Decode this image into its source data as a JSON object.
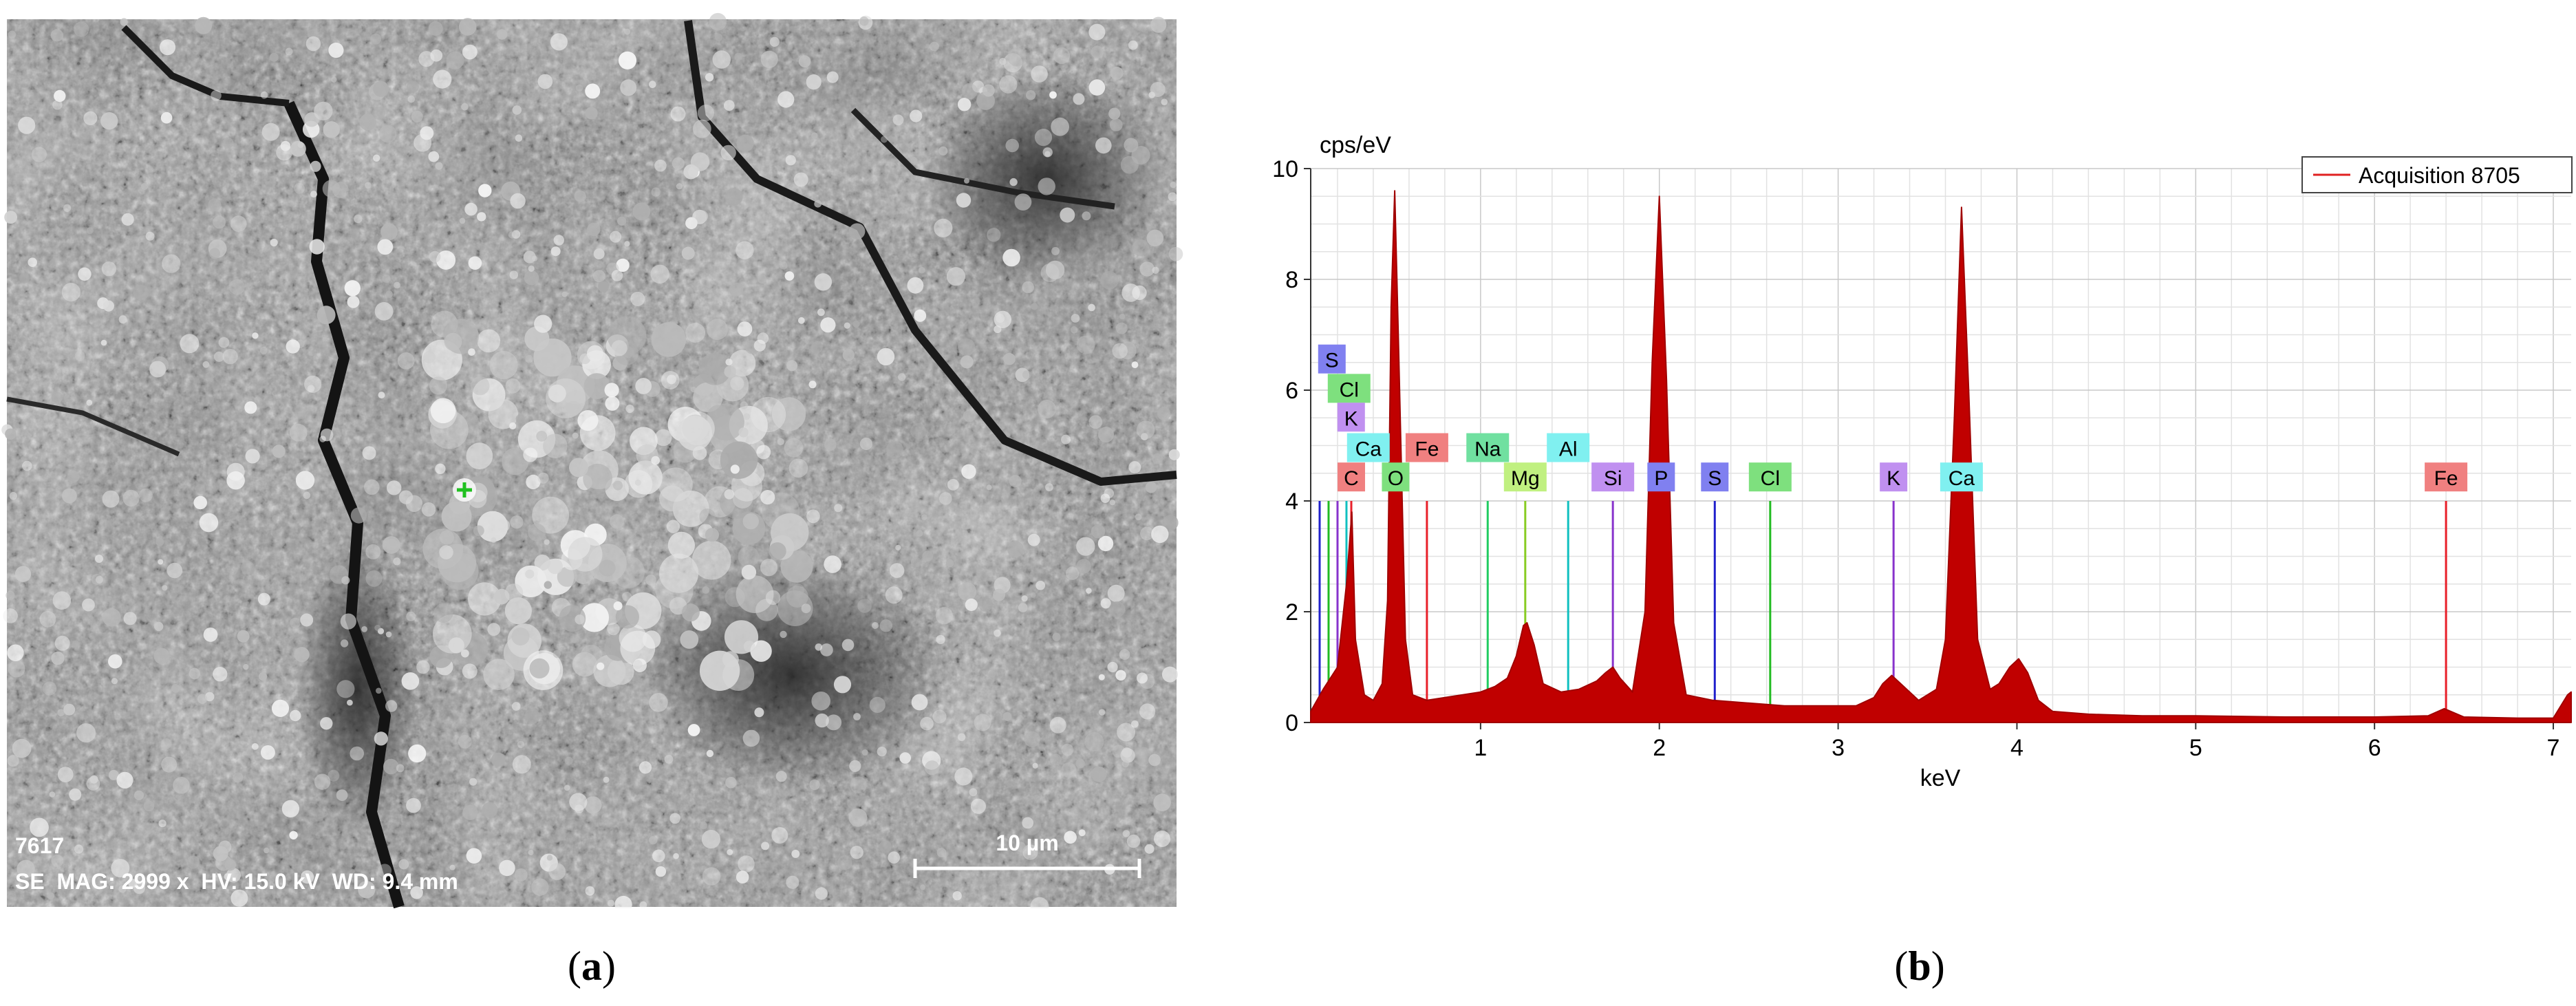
{
  "figure": {
    "panels": [
      {
        "label_open": "(",
        "label": "a",
        "label_close": ")"
      },
      {
        "label_open": "(",
        "label": "b",
        "label_close": ")"
      }
    ]
  },
  "sem": {
    "image_id": "7617",
    "info_line": "SE  MAG: 2999 x  HV: 15.0 kV  WD: 9.4 mm",
    "scale_bar_label": "10 µm"
  },
  "chart_data": {
    "type": "line",
    "ylabel": "cps/eV",
    "xlabel": "keV",
    "legend": {
      "entries": [
        "Acquisition 8705"
      ],
      "placement": "top-right"
    },
    "xlim": [
      0.05,
      7.1
    ],
    "ylim": [
      0,
      10
    ],
    "x_ticks": [
      1,
      2,
      3,
      4,
      5,
      6,
      7
    ],
    "y_ticks": [
      0,
      2,
      4,
      6,
      8,
      10
    ],
    "grid": true,
    "series": [
      {
        "name": "Acquisition 8705",
        "color": "#c00000",
        "x": [
          0.05,
          0.12,
          0.2,
          0.25,
          0.28,
          0.3,
          0.35,
          0.4,
          0.45,
          0.48,
          0.5,
          0.52,
          0.54,
          0.58,
          0.62,
          0.7,
          0.8,
          0.9,
          1.0,
          1.04,
          1.08,
          1.15,
          1.2,
          1.24,
          1.26,
          1.3,
          1.35,
          1.45,
          1.55,
          1.65,
          1.7,
          1.74,
          1.78,
          1.85,
          1.92,
          1.96,
          2.0,
          2.04,
          2.08,
          2.15,
          2.3,
          2.5,
          2.7,
          2.9,
          3.1,
          3.2,
          3.25,
          3.3,
          3.35,
          3.45,
          3.55,
          3.6,
          3.65,
          3.69,
          3.73,
          3.78,
          3.85,
          3.9,
          3.96,
          4.01,
          4.06,
          4.12,
          4.2,
          4.4,
          4.7,
          5.0,
          5.5,
          6.0,
          6.3,
          6.39,
          6.5,
          6.8,
          7.0,
          7.08,
          7.1
        ],
        "y": [
          0.2,
          0.6,
          1.0,
          2.5,
          3.8,
          1.5,
          0.5,
          0.4,
          0.7,
          2.2,
          7.5,
          9.6,
          7.0,
          1.5,
          0.5,
          0.4,
          0.45,
          0.5,
          0.55,
          0.6,
          0.65,
          0.8,
          1.2,
          1.75,
          1.8,
          1.4,
          0.7,
          0.55,
          0.6,
          0.75,
          0.9,
          1.0,
          0.8,
          0.55,
          2.0,
          6.5,
          9.5,
          6.2,
          1.8,
          0.5,
          0.4,
          0.35,
          0.3,
          0.3,
          0.3,
          0.45,
          0.7,
          0.85,
          0.7,
          0.4,
          0.6,
          1.5,
          5.5,
          9.3,
          6.0,
          1.5,
          0.6,
          0.7,
          1.0,
          1.15,
          0.9,
          0.4,
          0.2,
          0.15,
          0.12,
          0.12,
          0.1,
          0.1,
          0.12,
          0.25,
          0.1,
          0.08,
          0.08,
          0.5,
          0.55
        ]
      }
    ],
    "element_markers": [
      {
        "element": "S",
        "energy": 0.1,
        "group": "S",
        "row": 1
      },
      {
        "element": "Cl",
        "energy": 0.15,
        "group": "Cl",
        "row": 2
      },
      {
        "element": "K",
        "energy": 0.2,
        "group": "K",
        "row": 3
      },
      {
        "element": "Ca",
        "energy": 0.25,
        "group": "Ca",
        "row": 4
      },
      {
        "element": "C",
        "energy": 0.277,
        "group": "Fe",
        "row": 5
      },
      {
        "element": "Fe",
        "energy": 0.7,
        "group": "Fe",
        "row": 4
      },
      {
        "element": "O",
        "energy": 0.525,
        "group": "Cl",
        "row": 5
      },
      {
        "element": "Na",
        "energy": 1.04,
        "group": "Na",
        "row": 4
      },
      {
        "element": "Mg",
        "energy": 1.25,
        "group": "Mg",
        "row": 5
      },
      {
        "element": "Al",
        "energy": 1.49,
        "group": "Ca",
        "row": 4
      },
      {
        "element": "Si",
        "energy": 1.74,
        "group": "K",
        "row": 5
      },
      {
        "element": "P",
        "energy": 2.01,
        "group": "S",
        "row": 5
      },
      {
        "element": "S",
        "energy": 2.31,
        "group": "S",
        "row": 5
      },
      {
        "element": "Cl",
        "energy": 2.62,
        "group": "Cl",
        "row": 5
      },
      {
        "element": "K",
        "energy": 3.31,
        "group": "K",
        "row": 5
      },
      {
        "element": "Ca",
        "energy": 3.69,
        "group": "Ca",
        "row": 5
      },
      {
        "element": "Fe",
        "energy": 6.4,
        "group": "Fe",
        "row": 5
      }
    ],
    "marker_colors": {
      "Fe": {
        "label_bg": "#f08080",
        "line": "#e8202a"
      },
      "Cl": {
        "label_bg": "#7ee07e",
        "line": "#22bb22"
      },
      "S": {
        "label_bg": "#8080f0",
        "line": "#2020cc"
      },
      "K": {
        "label_bg": "#c090f0",
        "line": "#8833cc"
      },
      "Ca": {
        "label_bg": "#80f0f0",
        "line": "#10c0c0"
      },
      "Na": {
        "label_bg": "#70e0a0",
        "line": "#20cc60"
      },
      "Mg": {
        "label_bg": "#c0f080",
        "line": "#88cc22"
      }
    }
  }
}
